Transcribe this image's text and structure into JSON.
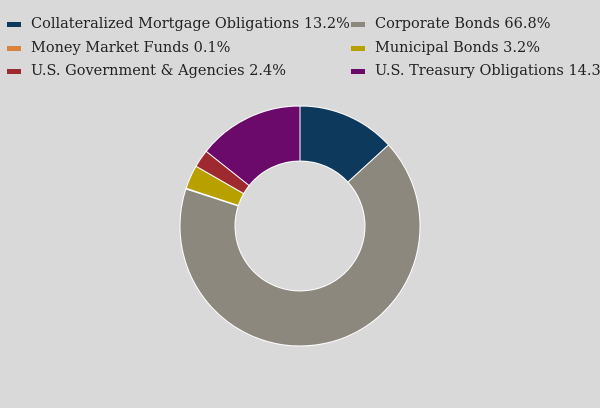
{
  "chart_data": {
    "type": "pie",
    "variant": "donut",
    "title": "",
    "legend_position": "top",
    "slices": [
      {
        "label": "Collateralized Mortgage Obligations",
        "value": 13.2,
        "value_text": "13.2%",
        "color": "#0d3a5c"
      },
      {
        "label": "Corporate Bonds",
        "value": 66.8,
        "value_text": "66.8%",
        "color": "#8c887e"
      },
      {
        "label": "Money Market Funds",
        "value": 0.1,
        "value_text": "0.1%",
        "color": "#d9823b"
      },
      {
        "label": "Municipal Bonds",
        "value": 3.2,
        "value_text": "3.2%",
        "color": "#b8a000"
      },
      {
        "label": "U.S. Government & Agencies",
        "value": 2.4,
        "value_text": "2.4%",
        "color": "#9e2a2f"
      },
      {
        "label": "U.S. Treasury Obligations",
        "value": 14.3,
        "value_text": "14.3%",
        "color": "#6b0a6b"
      }
    ]
  }
}
